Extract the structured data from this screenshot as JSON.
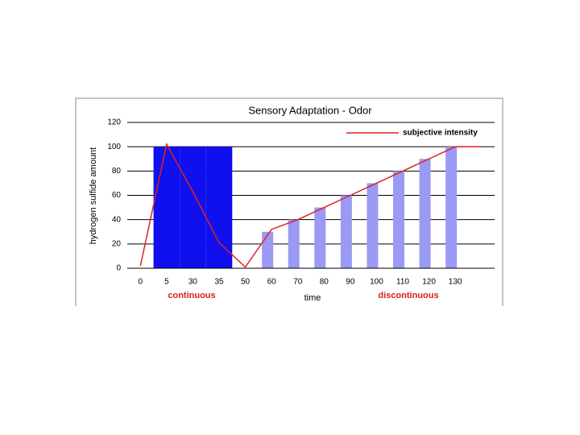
{
  "chart_data": {
    "type": "bar",
    "title": "Sensory Adaptation - Odor",
    "y_label": "hydrogen sulfide amount",
    "x_label": "time",
    "annotations": [
      "continuous",
      "discontinuous"
    ],
    "categories": [
      "0",
      "5",
      "30",
      "35",
      "50",
      "60",
      "70",
      "80",
      "90",
      "100",
      "110",
      "120",
      "130",
      null
    ],
    "values": [
      0,
      100,
      100,
      100,
      0,
      30,
      40,
      50,
      60,
      70,
      80,
      90,
      100,
      null
    ],
    "bar_colors": [
      "#1010ee",
      "#1010ee",
      "#1010ee",
      "#1010ee",
      "#9a9af4",
      "#9a9af4",
      "#9a9af4",
      "#9a9af4",
      "#9a9af4",
      "#9a9af4",
      "#9a9af4",
      "#9a9af4",
      "#9a9af4",
      "#9a9af4"
    ],
    "line": {
      "name": "subjective intensity",
      "color": "#e02020",
      "values": [
        2,
        102,
        63,
        21,
        1,
        32,
        40,
        50,
        60,
        70,
        80,
        90,
        100,
        100
      ]
    },
    "ylim": [
      0,
      120
    ],
    "yticks": [
      0,
      20,
      40,
      60,
      80,
      100,
      120
    ],
    "grid": true
  }
}
